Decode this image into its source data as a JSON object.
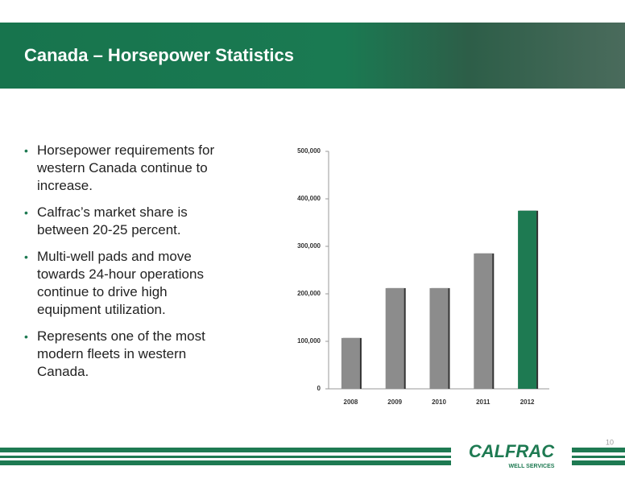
{
  "header": {
    "title": "Canada – Horsepower Statistics"
  },
  "bullets": [
    "Horsepower requirements for western Canada continue to increase.",
    "Calfrac’s market share is between 20-25 percent.",
    "Multi-well pads and move towards 24-hour operations continue to drive high equipment utilization.",
    "Represents one of the most modern fleets in western Canada."
  ],
  "chart_data": {
    "type": "bar",
    "categories": [
      "2008",
      "2009",
      "2010",
      "2011",
      "2012"
    ],
    "values": [
      107000,
      212000,
      212000,
      285000,
      375000
    ],
    "colors": [
      "#8c8c8c",
      "#8c8c8c",
      "#8c8c8c",
      "#8c8c8c",
      "#1e7a52"
    ],
    "ylim": [
      0,
      500000
    ],
    "yticks": [
      0,
      {
        "value": 100000,
        "label": "100,000"
      },
      {
        "value": 200000,
        "label": "200,000"
      },
      {
        "value": 300000,
        "label": "300,000"
      },
      {
        "value": 400000,
        "label": "400,000"
      },
      {
        "value": 500000,
        "label": "500,000"
      }
    ]
  },
  "footer": {
    "logo": "CALFRAC",
    "logo_sub": "WELL SERVICES",
    "page_number": "10"
  }
}
